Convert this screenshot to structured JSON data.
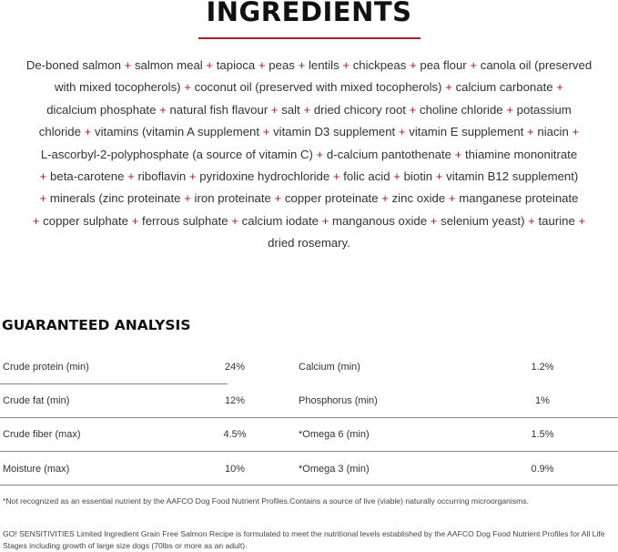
{
  "ingredients": {
    "title": "INGREDIENTS",
    "accent_color": "#a3202e",
    "lines": [
      "De-boned salmon + salmon meal + tapioca + peas + lentils + chickpeas + pea flour + canola oil (preserved",
      "with mixed tocopherols) + coconut oil (preserved with mixed tocopherols) + calcium carbonate +",
      "dicalcium phosphate + natural fish flavour + salt + dried chicory root + choline chloride + potassium",
      "chloride + vitamins (vitamin A supplement + vitamin D3 supplement + vitamin E supplement + niacin +",
      "L-ascorbyl-2-polyphosphate (a source of vitamin C) + d-calcium pantothenate + thiamine mononitrate",
      "+ beta-carotene + riboflavin + pyridoxine hydrochloride + folic acid + biotin + vitamin B12 supplement)",
      "+ minerals (zinc proteinate + iron proteinate + copper proteinate + zinc oxide + manganese proteinate",
      "+ copper sulphate + ferrous sulphate + calcium iodate + manganous oxide + selenium yeast) + taurine +",
      "dried rosemary."
    ]
  },
  "analysis": {
    "title": "GUARANTEED ANALYSIS",
    "rows": [
      {
        "left_label": "Crude protein (min)",
        "left_value": "24%",
        "right_label": "Calcium (min)",
        "right_value": "1.2%"
      },
      {
        "left_label": "Crude fat (min)",
        "left_value": "12%",
        "right_label": "Phosphorus (min)",
        "right_value": "1%"
      },
      {
        "left_label": "Crude fiber (max)",
        "left_value": "4.5%",
        "right_label": "*Omega 6 (min)",
        "right_value": "1.5%"
      },
      {
        "left_label": "Moisture (max)",
        "left_value": "10%",
        "right_label": "*Omega 3 (min)",
        "right_value": "0.9%"
      }
    ],
    "footnote": "*Not recognized as an essential nutrient by the AAFCO Dog Food Nutrient Profiles.Contains a source of live (viable) naturally occurring microorganisms.",
    "statement": "GO! SENSITIVITIES Limited Ingredient Grain Free Salmon Recipe is formulated to meet the nutritional levels established by the AAFCO Dog Food Nutrient Profiles for All Life Stages including growth of large size dogs (70lbs or more as an adult)."
  }
}
